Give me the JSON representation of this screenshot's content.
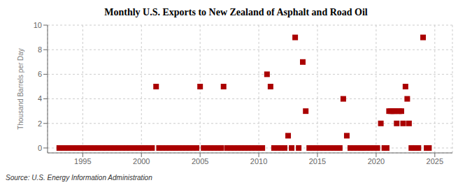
{
  "chart_data": {
    "type": "scatter",
    "title": "Monthly U.S. Exports to New Zealand of Asphalt and Road Oil",
    "ylabel": "Thousand Barrels per Day",
    "source": "Source: U.S. Energy Information Administration",
    "xlim": [
      1992.0,
      2026.5
    ],
    "ylim": [
      -0.4,
      10
    ],
    "xticks": [
      1995,
      2000,
      2005,
      2010,
      2015,
      2020,
      2025
    ],
    "yticks": [
      0,
      2,
      4,
      6,
      8,
      10
    ],
    "grid": true,
    "color": "#aa0000",
    "marker": "square",
    "x": [
      1993.0,
      1993.4,
      1993.8,
      1994.2,
      1994.5,
      1994.8,
      1995.1,
      1995.4,
      1995.7,
      1996.0,
      1996.3,
      1996.7,
      1997.0,
      1997.4,
      1997.7,
      1998.0,
      1998.4,
      1998.7,
      1999.0,
      1999.4,
      1999.7,
      2000.0,
      2000.3,
      2000.6,
      2000.9,
      2001.25,
      2001.5,
      2001.8,
      2002.1,
      2002.4,
      2002.7,
      2002.9,
      2003.2,
      2003.5,
      2003.8,
      2004.1,
      2004.4,
      2004.7,
      2005.0,
      2005.3,
      2005.6,
      2005.9,
      2006.2,
      2006.5,
      2006.8,
      2007.0,
      2007.3,
      2007.6,
      2007.9,
      2008.2,
      2008.5,
      2008.8,
      2009.1,
      2009.4,
      2009.7,
      2010.0,
      2010.3,
      2010.7,
      2011.0,
      2011.3,
      2011.6,
      2011.9,
      2012.2,
      2012.5,
      2012.8,
      2013.1,
      2013.4,
      2013.75,
      2014.0,
      2014.3,
      2014.6,
      2014.9,
      2015.2,
      2015.5,
      2015.8,
      2016.1,
      2016.4,
      2016.7,
      2016.9,
      2017.2,
      2017.5,
      2017.8,
      2018.1,
      2018.4,
      2018.7,
      2018.9,
      2019.2,
      2019.5,
      2019.8,
      2020.1,
      2020.4,
      2020.7,
      2020.9,
      2021.1,
      2021.25,
      2021.4,
      2021.5,
      2021.6,
      2021.75,
      2021.9,
      2022.0,
      2022.15,
      2022.3,
      2022.5,
      2022.65,
      2022.8,
      2023.0,
      2023.2,
      2023.4,
      2023.6,
      2024.0,
      2024.3,
      2024.5
    ],
    "values": [
      0,
      0,
      0,
      0,
      0,
      0,
      0,
      0,
      0,
      0,
      0,
      0,
      0,
      0,
      0,
      0,
      0,
      0,
      0,
      0,
      0,
      0,
      0,
      0,
      0,
      5,
      0,
      0,
      0,
      0,
      0,
      0,
      0,
      0,
      0,
      0,
      0,
      0,
      5,
      0,
      0,
      0,
      0,
      0,
      0,
      5,
      0,
      0,
      0,
      0,
      0,
      0,
      0,
      0,
      0,
      0,
      0,
      6,
      5,
      0,
      0,
      0,
      0,
      1,
      0,
      9,
      0,
      7,
      3,
      0,
      0,
      0,
      0,
      0,
      0,
      0,
      0,
      0,
      0,
      4,
      1,
      0,
      0,
      0,
      0,
      0,
      0,
      0,
      0,
      0,
      2,
      0,
      0,
      3,
      3,
      3,
      3,
      3,
      2,
      3,
      3,
      3,
      2,
      5,
      4,
      2,
      0,
      0,
      0,
      0,
      9,
      0,
      0
    ]
  }
}
